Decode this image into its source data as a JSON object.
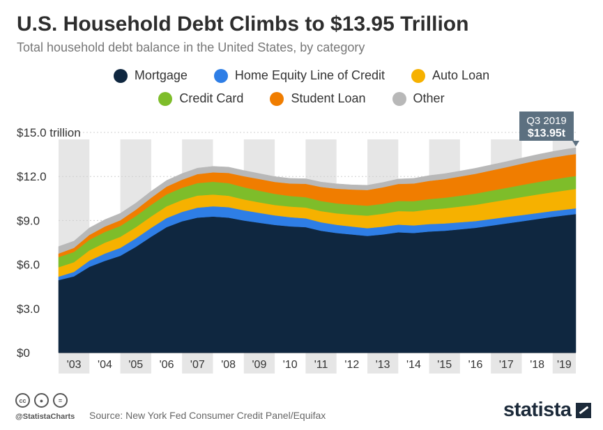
{
  "header": {
    "title": "U.S. Household Debt Climbs to $13.95 Trillion",
    "subtitle": "Total household debt balance in the United States, by category"
  },
  "legend": [
    {
      "label": "Mortgage",
      "color": "#0f2740"
    },
    {
      "label": "Home Equity Line of Credit",
      "color": "#2e7ee6"
    },
    {
      "label": "Auto Loan",
      "color": "#f6b100"
    },
    {
      "label": "Credit Card",
      "color": "#7ebd2a"
    },
    {
      "label": "Student Loan",
      "color": "#f07d00"
    },
    {
      "label": "Other",
      "color": "#b8b8b8"
    }
  ],
  "callout": {
    "period": "Q3 2019",
    "value": "$13.95t",
    "color": "#5c7080"
  },
  "footer": {
    "handle": "@StatistaCharts",
    "source": "Source: New York Fed Consumer Credit Panel/Equifax",
    "logo": "statista"
  },
  "chart_data": {
    "type": "area",
    "stacked": true,
    "y_tick_labels": [
      "$0",
      "$3.0",
      "$6.0",
      "$9.0",
      "$12.0",
      "$15.0 trillion"
    ],
    "ylim": [
      0,
      15
    ],
    "x_tick_labels": [
      "'03",
      "'04",
      "'05",
      "'06",
      "'07",
      "'08",
      "'09",
      "'10",
      "'11",
      "'12",
      "'13",
      "'14",
      "'15",
      "'16",
      "'17",
      "'18",
      "'19"
    ],
    "xlim": [
      2003.0,
      2019.75
    ],
    "grid": true,
    "alternating_year_bands": true,
    "x": [
      2003.0,
      2003.5,
      2004.0,
      2004.5,
      2005.0,
      2005.5,
      2006.0,
      2006.5,
      2007.0,
      2007.5,
      2008.0,
      2008.5,
      2009.0,
      2009.5,
      2010.0,
      2010.5,
      2011.0,
      2011.5,
      2012.0,
      2012.5,
      2013.0,
      2013.5,
      2014.0,
      2014.5,
      2015.0,
      2015.5,
      2016.0,
      2016.5,
      2017.0,
      2017.5,
      2018.0,
      2018.5,
      2019.0,
      2019.5,
      2019.75
    ],
    "series": [
      {
        "name": "Mortgage",
        "color": "#0f2740",
        "values": [
          4.94,
          5.2,
          5.85,
          6.25,
          6.6,
          7.2,
          7.9,
          8.55,
          8.95,
          9.2,
          9.27,
          9.2,
          9.0,
          8.85,
          8.7,
          8.6,
          8.55,
          8.3,
          8.15,
          8.05,
          7.95,
          8.05,
          8.2,
          8.15,
          8.25,
          8.3,
          8.4,
          8.5,
          8.65,
          8.8,
          8.95,
          9.1,
          9.25,
          9.38,
          9.44
        ]
      },
      {
        "name": "Home Equity Line of Credit",
        "color": "#2e7ee6",
        "values": [
          0.24,
          0.3,
          0.42,
          0.5,
          0.54,
          0.58,
          0.6,
          0.62,
          0.64,
          0.68,
          0.7,
          0.71,
          0.7,
          0.67,
          0.65,
          0.63,
          0.6,
          0.58,
          0.56,
          0.54,
          0.53,
          0.53,
          0.52,
          0.52,
          0.51,
          0.5,
          0.48,
          0.46,
          0.45,
          0.44,
          0.42,
          0.41,
          0.4,
          0.39,
          0.39
        ]
      },
      {
        "name": "Auto Loan",
        "color": "#f6b100",
        "values": [
          0.64,
          0.66,
          0.7,
          0.74,
          0.75,
          0.76,
          0.78,
          0.8,
          0.81,
          0.82,
          0.8,
          0.78,
          0.74,
          0.72,
          0.71,
          0.72,
          0.74,
          0.76,
          0.78,
          0.81,
          0.85,
          0.88,
          0.92,
          0.95,
          0.99,
          1.03,
          1.07,
          1.11,
          1.15,
          1.18,
          1.23,
          1.26,
          1.28,
          1.31,
          1.32
        ]
      },
      {
        "name": "Credit Card",
        "color": "#7ebd2a",
        "values": [
          0.69,
          0.7,
          0.72,
          0.73,
          0.74,
          0.76,
          0.79,
          0.81,
          0.83,
          0.85,
          0.87,
          0.86,
          0.83,
          0.79,
          0.76,
          0.72,
          0.7,
          0.69,
          0.68,
          0.68,
          0.68,
          0.68,
          0.69,
          0.7,
          0.71,
          0.72,
          0.74,
          0.76,
          0.78,
          0.8,
          0.82,
          0.84,
          0.86,
          0.88,
          0.88
        ]
      },
      {
        "name": "Student Loan",
        "color": "#f07d00",
        "values": [
          0.24,
          0.28,
          0.33,
          0.37,
          0.39,
          0.43,
          0.48,
          0.53,
          0.55,
          0.61,
          0.64,
          0.69,
          0.75,
          0.8,
          0.81,
          0.85,
          0.91,
          0.96,
          1.0,
          1.03,
          1.07,
          1.12,
          1.16,
          1.2,
          1.24,
          1.27,
          1.31,
          1.35,
          1.38,
          1.41,
          1.45,
          1.48,
          1.5,
          1.5,
          1.5
        ]
      },
      {
        "name": "Other",
        "color": "#b8b8b8",
        "values": [
          0.48,
          0.46,
          0.48,
          0.47,
          0.47,
          0.45,
          0.45,
          0.42,
          0.42,
          0.41,
          0.41,
          0.4,
          0.39,
          0.37,
          0.36,
          0.35,
          0.35,
          0.33,
          0.33,
          0.32,
          0.32,
          0.33,
          0.34,
          0.35,
          0.36,
          0.37,
          0.37,
          0.38,
          0.38,
          0.38,
          0.39,
          0.4,
          0.41,
          0.42,
          0.42
        ]
      }
    ],
    "annotation": {
      "label": "Q3 2019",
      "value_label": "$13.95t",
      "x": 2019.75,
      "y": 13.95
    }
  }
}
